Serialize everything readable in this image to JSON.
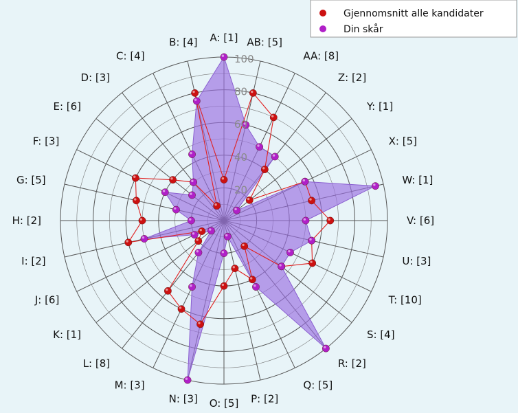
{
  "chart_data": {
    "type": "radar",
    "rlim": [
      0,
      100
    ],
    "r_ticks": [
      20,
      40,
      60,
      80,
      100
    ],
    "categories": [
      "A: [1]",
      "AB: [5]",
      "AA: [8]",
      "Z: [2]",
      "Y: [1]",
      "X: [5]",
      "W: [1]",
      "V: [6]",
      "U: [3]",
      "T: [10]",
      "S: [4]",
      "R: [2]",
      "Q: [5]",
      "P: [2]",
      "O: [5]",
      "N: [3]",
      "M: [3]",
      "L: [8]",
      "K: [1]",
      "J: [6]",
      "I: [2]",
      "H: [2]",
      "G: [5]",
      "F: [3]",
      "E: [6]",
      "D: [3]",
      "C: [4]",
      "B: [4]"
    ],
    "series": [
      {
        "name": "Gjennomsnitt alle kandidater",
        "color": "#cc1111",
        "values": [
          25,
          80,
          70,
          40,
          20,
          55,
          55,
          65,
          55,
          60,
          45,
          20,
          40,
          30,
          40,
          65,
          60,
          55,
          20,
          15,
          60,
          50,
          55,
          60,
          40,
          30,
          10,
          80
        ]
      },
      {
        "name": "Din skår",
        "color": "#b020c8",
        "fill": "#9a6ee0",
        "values": [
          100,
          60,
          50,
          50,
          10,
          55,
          95,
          50,
          55,
          45,
          45,
          100,
          45,
          10,
          20,
          100,
          45,
          25,
          10,
          20,
          50,
          20,
          30,
          40,
          25,
          30,
          45,
          75
        ]
      }
    ],
    "legend_position": "top-right",
    "grid": true
  }
}
